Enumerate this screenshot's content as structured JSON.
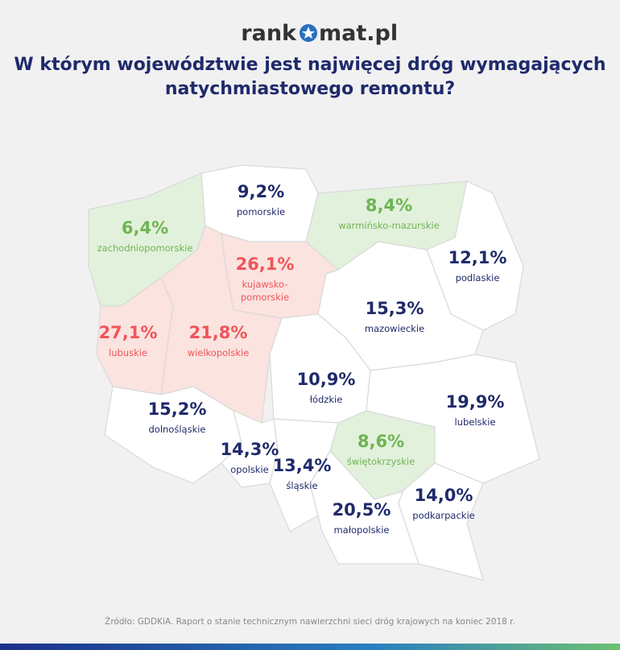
{
  "logo": {
    "left": "rank",
    "right": "mat.pl"
  },
  "title": [
    "W którym województwie jest najwięcej dróg wymagających",
    "natychmiastowego remontu?"
  ],
  "regions": [
    {
      "name": "zachodniopomorskie",
      "value": "6,4%",
      "fill": "#e2f1dc",
      "text_color": "#6db552"
    },
    {
      "name": "pomorskie",
      "value": "9,2%",
      "fill": "#ffffff",
      "text_color": "#1f2a6b"
    },
    {
      "name": "warmińsko-mazurskie",
      "value": "8,4%",
      "fill": "#e2f1dc",
      "text_color": "#6db552"
    },
    {
      "name": "podlaskie",
      "value": "12,1%",
      "fill": "#ffffff",
      "text_color": "#1f2a6b"
    },
    {
      "name": "kujawsko-\npomorskie",
      "value": "26,1%",
      "fill": "#fbe3df",
      "text_color": "#f0545a"
    },
    {
      "name": "lubuskie",
      "value": "27,1%",
      "fill": "#fbe3df",
      "text_color": "#f0545a"
    },
    {
      "name": "wielkopolskie",
      "value": "21,8%",
      "fill": "#fbe3df",
      "text_color": "#f0545a"
    },
    {
      "name": "mazowieckie",
      "value": "15,3%",
      "fill": "#ffffff",
      "text_color": "#1f2a6b"
    },
    {
      "name": "łódzkie",
      "value": "10,9%",
      "fill": "#ffffff",
      "text_color": "#1f2a6b"
    },
    {
      "name": "dolnośląskie",
      "value": "15,2%",
      "fill": "#ffffff",
      "text_color": "#1f2a6b"
    },
    {
      "name": "opolskie",
      "value": "14,3%",
      "fill": "#ffffff",
      "text_color": "#1f2a6b"
    },
    {
      "name": "śląskie",
      "value": "13,4%",
      "fill": "#ffffff",
      "text_color": "#1f2a6b"
    },
    {
      "name": "świętokrzyskie",
      "value": "8,6%",
      "fill": "#e2f1dc",
      "text_color": "#6db552"
    },
    {
      "name": "lubelskie",
      "value": "19,9%",
      "fill": "#ffffff",
      "text_color": "#1f2a6b"
    },
    {
      "name": "podkarpackie",
      "value": "14,0%",
      "fill": "#ffffff",
      "text_color": "#1f2a6b"
    },
    {
      "name": "małopolskie",
      "value": "20,5%",
      "fill": "#ffffff",
      "text_color": "#1f2a6b"
    }
  ],
  "source": "Źródło: GDDKiA. Raport o stanie technicznym nawierzchni sieci dróg krajowych na koniec 2018 r."
}
